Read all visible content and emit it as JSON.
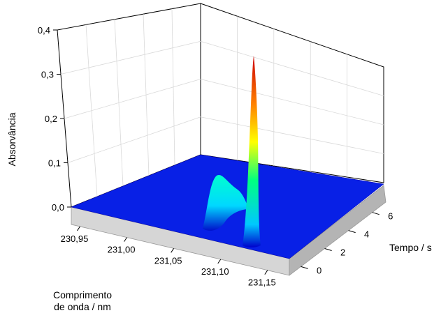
{
  "chart_data": {
    "type": "surface",
    "title": "",
    "zlabel": "Absorvância",
    "xlabel_line1": "Comprimento",
    "xlabel_line2": "de onda / nm",
    "ylabel": "Tempo / s",
    "zlim": [
      0.0,
      0.4
    ],
    "z_ticks": [
      "0,0",
      "0,1",
      "0,2",
      "0,3",
      "0,4"
    ],
    "x_ticks": [
      "230,95",
      "231,00",
      "231,05",
      "231,10",
      "231,15"
    ],
    "y_ticks": [
      "0",
      "2",
      "4",
      "6"
    ],
    "grid": true,
    "colormap": [
      "#0000cc",
      "#00c8ff",
      "#00ff80",
      "#ffff00",
      "#ff8000",
      "#cc0000"
    ],
    "peaks": [
      {
        "wavelength_nm": 231.095,
        "time_s": 5.5,
        "absorbance": 0.34
      },
      {
        "wavelength_nm": 231.065,
        "time_s": 4.0,
        "absorbance": 0.09
      }
    ]
  }
}
